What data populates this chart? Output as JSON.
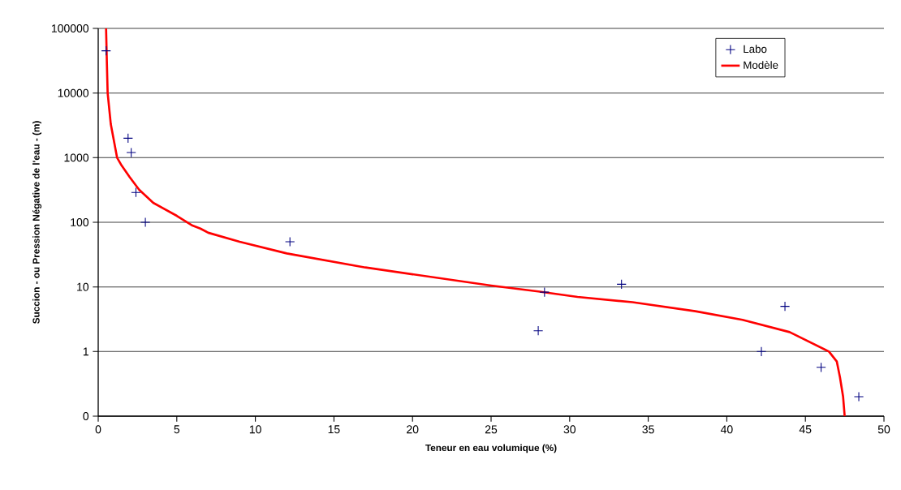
{
  "chart_data": {
    "type": "scatter",
    "xlabel": "Teneur en eau volumique (%)",
    "ylabel": "Succion - ou Pression Négative de l'eau - (m)",
    "xlim": [
      0,
      50
    ],
    "xticks": [
      0,
      5,
      10,
      15,
      20,
      25,
      30,
      35,
      40,
      45,
      50
    ],
    "ylim": [
      0.1,
      100000
    ],
    "yticks": [
      {
        "value": 0.1,
        "label": "0"
      },
      1,
      10,
      100,
      1000,
      10000,
      100000
    ],
    "log": "y",
    "grid": "y",
    "legend": "top right",
    "series": [
      {
        "name": "Labo",
        "marker": "cross",
        "color": "#000080",
        "x": [
          0.5,
          1.9,
          2.1,
          2.4,
          3.0,
          12.2,
          28.0,
          28.4,
          33.3,
          42.2,
          43.7,
          46.0,
          48.4
        ],
        "values": [
          45000,
          2000,
          1200,
          290,
          100,
          50,
          2.1,
          8.3,
          11,
          1,
          5,
          0.57,
          0.2
        ]
      },
      {
        "name": "Modèle",
        "type": "line",
        "marker": "none",
        "line_style": "solid",
        "color": "#ff0000",
        "x": [
          0.5,
          0.55,
          0.6,
          0.8,
          1.2,
          1.5,
          2.0,
          2.6,
          3.5,
          5.0,
          6.0,
          6.5,
          7.0,
          9.0,
          12.0,
          17.0,
          25.0,
          28.0,
          30.5,
          34.0,
          38.0,
          41.0,
          44.0,
          46.5,
          47.0,
          47.2,
          47.4,
          47.5
        ],
        "values": [
          100000,
          30000,
          10000,
          3300,
          1000,
          750,
          500,
          320,
          200,
          126,
          89,
          80,
          69,
          50,
          33,
          20,
          10.5,
          8.5,
          7.0,
          5.8,
          4.2,
          3.1,
          2.0,
          1.0,
          0.7,
          0.4,
          0.2,
          0.1
        ]
      }
    ]
  }
}
